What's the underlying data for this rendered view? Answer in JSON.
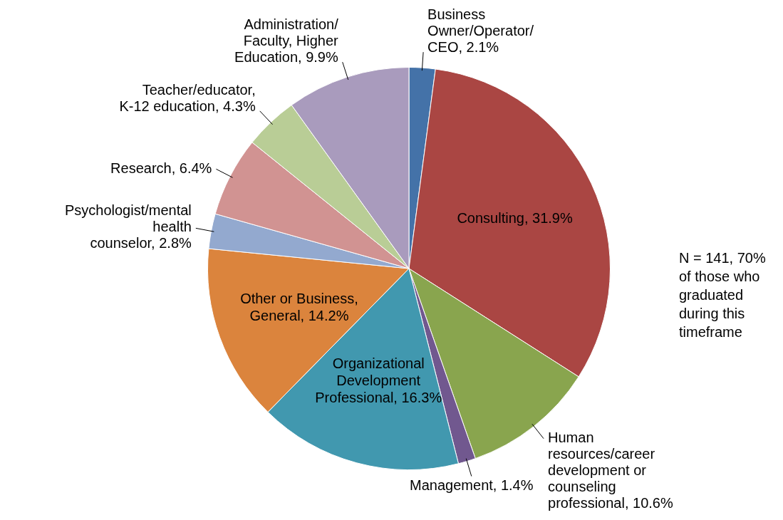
{
  "chart_data": {
    "type": "pie",
    "categories": [
      "Business Owner/Operator/ CEO",
      "Consulting",
      "Human resources/career development or counseling professional",
      "Management",
      "Organizational Development Professional",
      "Other or Business, General",
      "Psychologist/mental health counselor",
      "Research",
      "Teacher/educator, K-12 education",
      "Administration/ Faculty, Higher Education"
    ],
    "values": [
      2.1,
      31.9,
      10.6,
      1.4,
      16.3,
      14.2,
      2.8,
      6.4,
      4.3,
      9.9
    ],
    "colors": [
      "#4472a8",
      "#aa4643",
      "#89a54e",
      "#71588f",
      "#4198af",
      "#db843d",
      "#93a9cf",
      "#d19392",
      "#b9cd96",
      "#a99bbd"
    ],
    "value_labels": [
      "2.1%",
      "31.9%",
      "10.6%",
      "1.4%",
      "16.3%",
      "14.2%",
      "2.8%",
      "6.4%",
      "4.3%",
      "9.9%"
    ],
    "legend": false,
    "annotations": [
      "N = 141, 70% of those who graduated during this timeframe"
    ]
  }
}
